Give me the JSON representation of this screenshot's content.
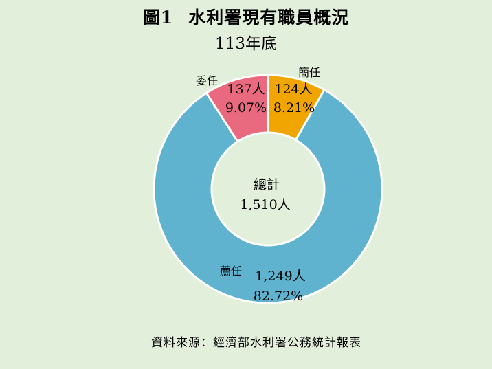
{
  "header": {
    "figure_label": "圖1",
    "title_text": "水利署現有職員概況",
    "subtitle": "113年底"
  },
  "chart_data": {
    "type": "donut",
    "title": "圖1 水利署現有職員概況",
    "subtitle": "113年底",
    "unit": "人",
    "categories": [
      "簡任",
      "薦任",
      "委任"
    ],
    "values": [
      124,
      1249,
      137
    ],
    "value_labels": [
      "124人",
      "1,249人",
      "137人"
    ],
    "percent_labels": [
      "8.21%",
      "82.72%",
      "9.07%"
    ],
    "colors": [
      "#f0a500",
      "#5fb3cf",
      "#e96a7f"
    ],
    "center_label": "總計",
    "center_value": "1,510人",
    "total": 1510
  },
  "footer": {
    "source": "資料來源：經濟部水利署公務統計報表"
  }
}
